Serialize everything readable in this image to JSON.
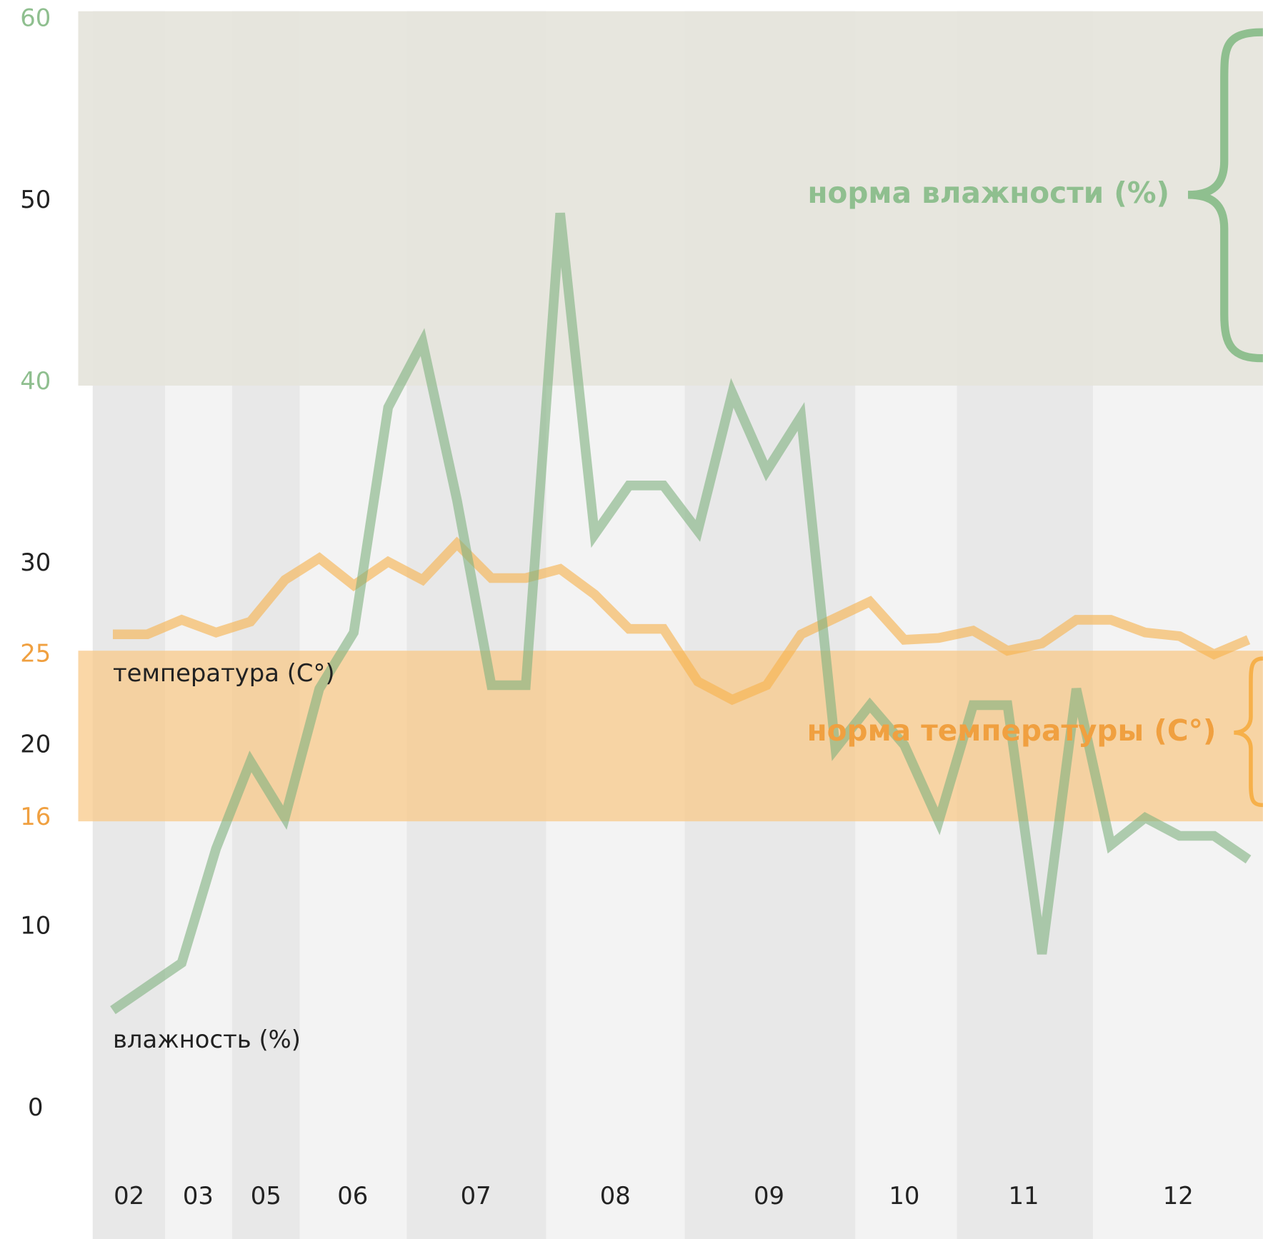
{
  "chart_data": {
    "type": "line",
    "x": [
      0,
      1,
      2,
      3,
      4,
      5,
      6,
      7,
      8,
      9,
      10,
      11,
      12,
      13,
      14,
      15,
      16,
      17,
      18,
      19,
      20,
      21,
      22,
      23,
      24,
      25,
      26,
      27,
      28,
      29,
      30,
      31,
      32,
      33
    ],
    "xlim": [
      -0.6,
      33.4
    ],
    "xticks": [
      {
        "value": 0.47,
        "label": "02"
      },
      {
        "value": 2.48,
        "label": "03"
      },
      {
        "value": 4.45,
        "label": "05"
      },
      {
        "value": 6.97,
        "label": "06"
      },
      {
        "value": 10.55,
        "label": "07"
      },
      {
        "value": 14.6,
        "label": "08"
      },
      {
        "value": 19.07,
        "label": "09"
      },
      {
        "value": 23.0,
        "label": "10"
      },
      {
        "value": 26.47,
        "label": "11"
      },
      {
        "value": 30.96,
        "label": "12"
      }
    ],
    "ylim": [
      0,
      60
    ],
    "yticks": [
      0,
      10,
      16,
      20,
      25,
      30,
      40,
      50,
      60
    ],
    "ytick_colors": [
      "#222222",
      "#222222",
      "#f0a040",
      "#222222",
      "#f0a040",
      "#222222",
      "#8fbf8f",
      "#222222",
      "#8fbf8f"
    ],
    "series": [
      {
        "name": "влажность (%)",
        "color": "#7fb07f",
        "values": [
          5.6,
          6.9,
          8.2,
          14.5,
          19.3,
          16.2,
          23.3,
          26.4,
          38.8,
          42.4,
          33.7,
          23.5,
          23.5,
          49.5,
          31.8,
          34.5,
          34.5,
          32.0,
          39.6,
          35.3,
          38.3,
          20.0,
          22.4,
          20.2,
          16.0,
          22.4,
          22.4,
          8.7,
          23.3,
          14.7,
          16.2,
          15.2,
          15.2,
          13.9
        ]
      },
      {
        "name": "температура (C°)",
        "color": "#f6b04a",
        "values": [
          26.3,
          26.3,
          27.1,
          26.4,
          27.0,
          29.3,
          30.5,
          29.0,
          30.3,
          29.3,
          31.3,
          29.4,
          29.4,
          29.9,
          28.5,
          26.6,
          26.6,
          23.7,
          22.7,
          23.5,
          26.3,
          27.2,
          28.1,
          26.0,
          26.1,
          26.5,
          25.4,
          25.8,
          27.1,
          27.1,
          26.4,
          26.2,
          25.2,
          26.0
        ]
      }
    ],
    "bands": [
      {
        "label": "норма влажности (%)",
        "range": [
          40,
          60
        ],
        "color": "#e6e5dc"
      },
      {
        "label": "норма температуры (C°)",
        "range": [
          16,
          25
        ],
        "color": "#f8c98a"
      }
    ]
  }
}
